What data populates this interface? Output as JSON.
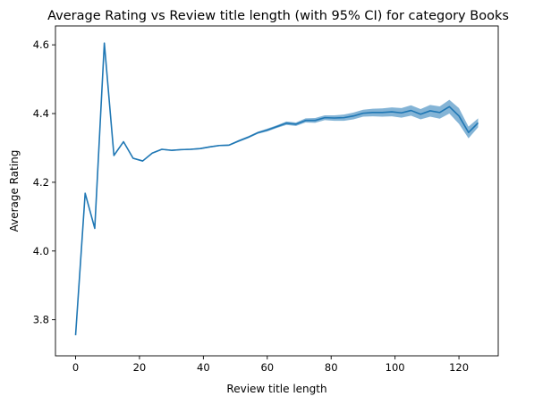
{
  "chart_data": {
    "type": "line",
    "title": "Average Rating vs Review title length (with 95% CI) for category Books",
    "xlabel": "Review title length",
    "ylabel": "Average Rating",
    "xlim": [
      -6.3,
      132.3
    ],
    "ylim": [
      3.695,
      4.655
    ],
    "xticks": [
      0,
      20,
      40,
      60,
      80,
      100,
      120
    ],
    "xtick_labels": [
      "0",
      "20",
      "40",
      "60",
      "80",
      "100",
      "120"
    ],
    "yticks": [
      3.8,
      4.0,
      4.2,
      4.4,
      4.6
    ],
    "ytick_labels": [
      "3.8",
      "4.0",
      "4.2",
      "4.4",
      "4.6"
    ],
    "grid": false,
    "line_color": "#1f77b4",
    "band_color": "#1f77b4",
    "series": [
      {
        "x": [
          0,
          3,
          6,
          9,
          12,
          15,
          18,
          21,
          24,
          27,
          30,
          33,
          36,
          39,
          42,
          45,
          48,
          51,
          54,
          57,
          60,
          63,
          66,
          69,
          72,
          75,
          78,
          81,
          84,
          87,
          90,
          93,
          96,
          99,
          102,
          105,
          108,
          111,
          114,
          117,
          120,
          123,
          126
        ],
        "y": [
          3.755,
          4.168,
          4.066,
          4.605,
          4.278,
          4.318,
          4.27,
          4.262,
          4.285,
          4.296,
          4.293,
          4.295,
          4.296,
          4.298,
          4.303,
          4.307,
          4.308,
          4.32,
          4.331,
          4.344,
          4.352,
          4.362,
          4.372,
          4.369,
          4.38,
          4.38,
          4.388,
          4.387,
          4.388,
          4.393,
          4.401,
          4.403,
          4.403,
          4.405,
          4.402,
          4.409,
          4.398,
          4.408,
          4.403,
          4.42,
          4.393,
          4.345,
          4.373
        ],
        "ci_low": [
          3.752,
          4.165,
          4.063,
          4.602,
          4.276,
          4.316,
          4.268,
          4.26,
          4.283,
          4.294,
          4.291,
          4.293,
          4.294,
          4.296,
          4.301,
          4.305,
          4.306,
          4.317,
          4.328,
          4.341,
          4.348,
          4.358,
          4.367,
          4.364,
          4.374,
          4.373,
          4.381,
          4.379,
          4.379,
          4.383,
          4.391,
          4.392,
          4.391,
          4.392,
          4.388,
          4.394,
          4.383,
          4.391,
          4.385,
          4.4,
          4.37,
          4.328,
          4.36
        ],
        "ci_high": [
          3.758,
          4.171,
          4.069,
          4.608,
          4.28,
          4.32,
          4.272,
          4.264,
          4.287,
          4.298,
          4.295,
          4.297,
          4.298,
          4.3,
          4.305,
          4.309,
          4.31,
          4.323,
          4.334,
          4.347,
          4.356,
          4.366,
          4.377,
          4.374,
          4.386,
          4.387,
          4.395,
          4.395,
          4.397,
          4.403,
          4.411,
          4.414,
          4.415,
          4.418,
          4.416,
          4.424,
          4.413,
          4.425,
          4.421,
          4.44,
          4.416,
          4.362,
          4.386
        ]
      }
    ]
  }
}
